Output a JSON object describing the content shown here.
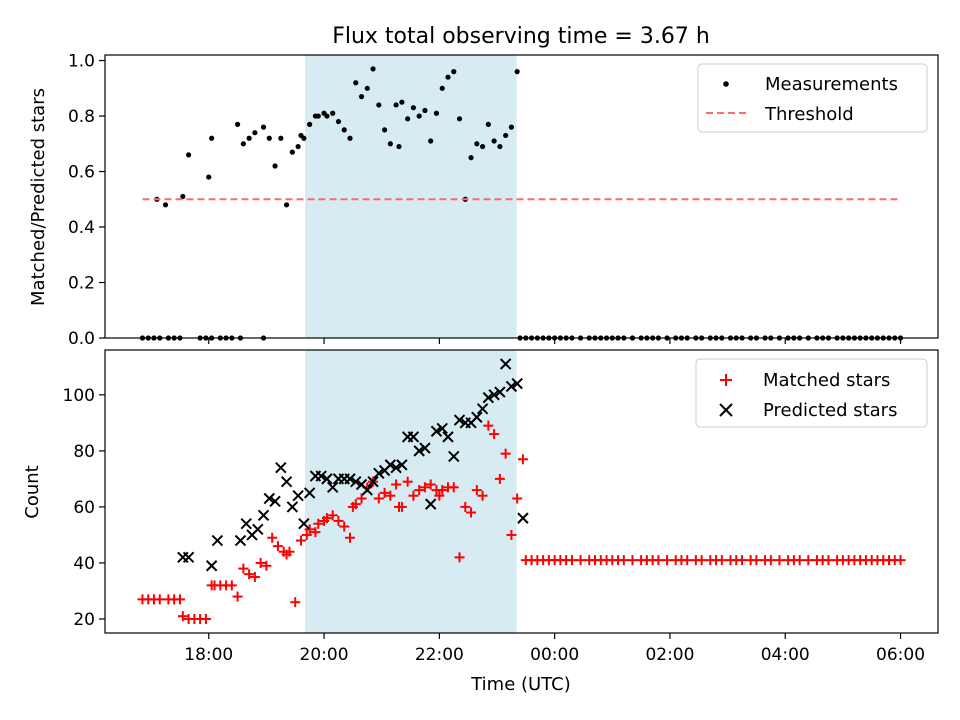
{
  "chart_data": [
    {
      "type": "scatter",
      "title": "Flux total observing time = 3.67 h",
      "xlabel": "",
      "ylabel": "Matched/Predicted stars",
      "xlim": [
        16.2,
        30.65
      ],
      "ylim": [
        0.0,
        1.02
      ],
      "yticks": [
        0.0,
        0.2,
        0.4,
        0.6,
        0.8,
        1.0
      ],
      "ytick_labels": [
        "0.0",
        "0.2",
        "0.4",
        "0.6",
        "0.8",
        "1.0"
      ],
      "highlight_span": [
        19.67,
        23.34
      ],
      "threshold": {
        "value": 0.5,
        "x_range": [
          16.85,
          30.0
        ]
      },
      "legend": {
        "location": "top-right",
        "entries": [
          "Measurements",
          "Threshold"
        ]
      },
      "series": [
        {
          "name": "Measurements",
          "x": [
            17.1,
            17.25,
            17.55,
            17.65,
            18.0,
            18.05,
            18.5,
            18.6,
            18.7,
            18.8,
            18.95,
            19.05,
            19.15,
            19.25,
            19.35,
            19.45,
            19.55,
            19.6,
            19.65,
            19.75,
            19.85,
            19.9,
            20.0,
            20.05,
            20.15,
            20.25,
            20.35,
            20.45,
            20.55,
            20.65,
            20.75,
            20.85,
            20.95,
            21.05,
            21.15,
            21.25,
            21.3,
            21.35,
            21.45,
            21.55,
            21.65,
            21.75,
            21.85,
            21.95,
            22.05,
            22.15,
            22.25,
            22.35,
            22.45,
            22.55,
            22.65,
            22.75,
            22.85,
            22.95,
            23.05,
            23.15,
            23.25,
            23.35
          ],
          "y": [
            0.5,
            0.48,
            0.51,
            0.66,
            0.58,
            0.72,
            0.77,
            0.7,
            0.72,
            0.74,
            0.76,
            0.72,
            0.62,
            0.72,
            0.48,
            0.67,
            0.69,
            0.73,
            0.72,
            0.77,
            0.8,
            0.8,
            0.81,
            0.8,
            0.81,
            0.78,
            0.75,
            0.72,
            0.92,
            0.87,
            0.9,
            0.97,
            0.84,
            0.75,
            0.7,
            0.84,
            0.69,
            0.85,
            0.79,
            0.83,
            0.8,
            0.82,
            0.71,
            0.81,
            0.9,
            0.94,
            0.96,
            0.79,
            0.5,
            0.65,
            0.7,
            0.69,
            0.77,
            0.71,
            0.69,
            0.73,
            0.76,
            0.96
          ],
          "zero_x": [
            16.85,
            16.95,
            17.05,
            17.15,
            17.3,
            17.4,
            17.5,
            17.85,
            17.95,
            18.05,
            18.2,
            18.3,
            18.4,
            18.55,
            18.95,
            23.4,
            23.5,
            23.6,
            23.7,
            23.8,
            23.9,
            24.0,
            24.1,
            24.2,
            24.3,
            24.45,
            24.6,
            24.7,
            24.8,
            24.9,
            25.0,
            25.1,
            25.2,
            25.35,
            25.5,
            25.6,
            25.7,
            25.8,
            25.95,
            26.1,
            26.2,
            26.3,
            26.45,
            26.55,
            26.7,
            26.8,
            26.9,
            27.05,
            27.15,
            27.25,
            27.4,
            27.5,
            27.65,
            27.75,
            27.9,
            28.05,
            28.15,
            28.25,
            28.4,
            28.55,
            28.65,
            28.75,
            28.9,
            29.0,
            29.1,
            29.2,
            29.3,
            29.4,
            29.5,
            29.6,
            29.7,
            29.8,
            29.9,
            30.0
          ]
        }
      ]
    },
    {
      "type": "scatter",
      "title": "",
      "xlabel": "Time (UTC)",
      "ylabel": "Count",
      "xlim": [
        16.2,
        30.65
      ],
      "ylim": [
        15,
        116
      ],
      "yticks": [
        20,
        40,
        60,
        80,
        100
      ],
      "ytick_labels": [
        "20",
        "40",
        "60",
        "80",
        "100"
      ],
      "xticks": [
        18,
        20,
        22,
        24,
        26,
        28,
        30
      ],
      "xtick_labels": [
        "18:00",
        "20:00",
        "22:00",
        "00:00",
        "02:00",
        "04:00",
        "06:00"
      ],
      "highlight_span": [
        19.67,
        23.34
      ],
      "legend": {
        "location": "top-right",
        "entries": [
          "Matched stars",
          "Predicted stars"
        ]
      },
      "series": [
        {
          "name": "Matched stars",
          "x": [
            16.85,
            16.95,
            17.05,
            17.15,
            17.3,
            17.4,
            17.5,
            17.55,
            17.65,
            17.75,
            17.85,
            17.95,
            18.05,
            18.1,
            18.2,
            18.3,
            18.4,
            18.5,
            18.6,
            18.7,
            18.8,
            18.9,
            19.0,
            19.1,
            19.2,
            19.3,
            19.35,
            19.4,
            19.5,
            19.6,
            19.7,
            19.75,
            19.85,
            19.9,
            20.0,
            20.05,
            20.15,
            20.25,
            20.35,
            20.45,
            20.5,
            20.55,
            20.65,
            20.75,
            20.85,
            20.95,
            21.05,
            21.15,
            21.25,
            21.3,
            21.35,
            21.45,
            21.55,
            21.65,
            21.75,
            21.85,
            21.95,
            22.0,
            22.05,
            22.15,
            22.25,
            22.35,
            22.45,
            22.55,
            22.65,
            22.75,
            22.85,
            22.95,
            23.05,
            23.15,
            23.25,
            23.35,
            23.45
          ],
          "y": [
            27,
            27,
            27,
            27,
            27,
            27,
            27,
            21,
            20,
            20,
            20,
            20,
            32,
            32,
            32,
            32,
            32,
            28,
            38,
            36,
            35,
            40,
            39,
            49,
            46,
            44,
            43,
            44,
            26,
            48,
            50,
            52,
            51,
            54,
            55,
            56,
            57,
            55,
            53,
            49,
            60,
            61,
            63,
            67,
            69,
            63,
            65,
            64,
            68,
            60,
            60,
            69,
            64,
            66,
            67,
            68,
            66,
            64,
            66,
            67,
            67,
            42,
            60,
            58,
            66,
            64,
            89,
            86,
            70,
            79,
            50,
            63,
            77
          ]
        },
        {
          "name": "Predicted stars",
          "x": [
            17.55,
            17.65,
            18.05,
            18.15,
            18.55,
            18.65,
            18.75,
            18.85,
            18.95,
            19.05,
            19.15,
            19.25,
            19.35,
            19.45,
            19.55,
            19.65,
            19.75,
            19.85,
            19.95,
            20.05,
            20.15,
            20.25,
            20.35,
            20.45,
            20.55,
            20.65,
            20.75,
            20.85,
            20.95,
            21.05,
            21.15,
            21.25,
            21.35,
            21.45,
            21.55,
            21.65,
            21.75,
            21.85,
            21.95,
            22.05,
            22.15,
            22.25,
            22.35,
            22.45,
            22.55,
            22.65,
            22.75,
            22.85,
            22.95,
            23.05,
            23.15,
            23.25,
            23.35,
            23.45
          ],
          "y": [
            42,
            42,
            39,
            48,
            48,
            54,
            50,
            52,
            57,
            63,
            62,
            74,
            69,
            60,
            64,
            54,
            65,
            71,
            71,
            70,
            67,
            70,
            70,
            70,
            69,
            68,
            66,
            69,
            72,
            73,
            75,
            74,
            75,
            85,
            85,
            80,
            81,
            61,
            87,
            88,
            85,
            78,
            91,
            90,
            90,
            92,
            95,
            99,
            100,
            101,
            111,
            103,
            104,
            56
          ]
        }
      ],
      "flat_points": {
        "value": 41,
        "x": [
          23.5,
          23.6,
          23.7,
          23.8,
          23.9,
          24.0,
          24.1,
          24.2,
          24.3,
          24.45,
          24.6,
          24.7,
          24.8,
          24.9,
          25.0,
          25.1,
          25.2,
          25.35,
          25.5,
          25.6,
          25.7,
          25.8,
          25.95,
          26.1,
          26.2,
          26.3,
          26.45,
          26.55,
          26.7,
          26.8,
          26.9,
          27.05,
          27.15,
          27.25,
          27.4,
          27.5,
          27.65,
          27.75,
          27.9,
          28.05,
          28.15,
          28.25,
          28.4,
          28.55,
          28.65,
          28.75,
          28.9,
          29.0,
          29.1,
          29.2,
          29.3,
          29.4,
          29.5,
          29.6,
          29.7,
          29.8,
          29.9,
          30.0
        ]
      }
    }
  ],
  "colors": {
    "span": "#add8e6",
    "threshold": "#ff6b6b",
    "matched": "#ff0000",
    "predicted": "#000000",
    "measurement": "#000000"
  }
}
